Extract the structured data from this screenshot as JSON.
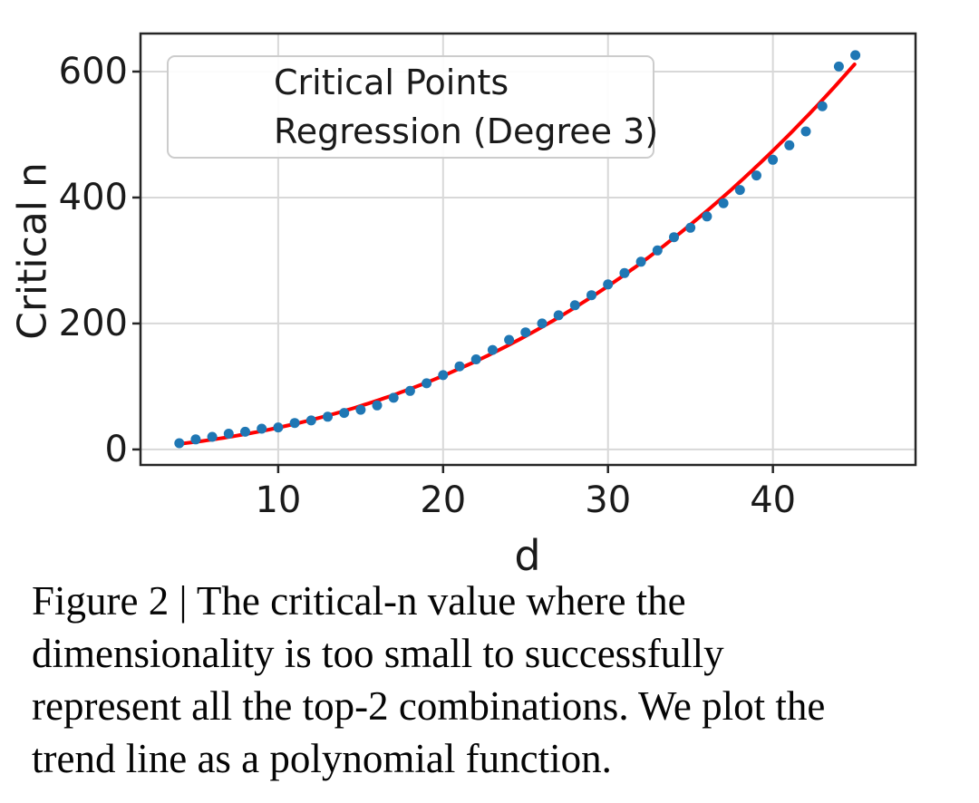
{
  "figure": {
    "caption_lines": [
      "Figure 2 | The critical-n value where the",
      "dimensionality is too small to successfully",
      "represent all the top-2 combinations. We plot the",
      "trend line as a polynomial function."
    ]
  },
  "chart_data": {
    "type": "scatter",
    "title": "",
    "xlabel": "d",
    "ylabel": "Critical n",
    "xlim": [
      1.65,
      48.65
    ],
    "ylim": [
      -24.6,
      660.4
    ],
    "xticks": [
      10,
      20,
      30,
      40
    ],
    "yticks": [
      0,
      200,
      400,
      600
    ],
    "grid": true,
    "legend_position": "upper left",
    "colors": {
      "points": "#1f77b4",
      "line": "#ff0000",
      "grid": "#d8d8d8",
      "spine": "#262626",
      "text": "#1a1a1a"
    },
    "series": [
      {
        "name": "Critical Points",
        "kind": "scatter",
        "color": "#1f77b4",
        "x": [
          4,
          5,
          6,
          7,
          8,
          9,
          10,
          11,
          12,
          13,
          14,
          15,
          16,
          17,
          18,
          19,
          20,
          21,
          22,
          23,
          24,
          25,
          26,
          27,
          28,
          29,
          30,
          31,
          32,
          33,
          34,
          35,
          36,
          37,
          38,
          39,
          40,
          41,
          42,
          43,
          44,
          45
        ],
        "y": [
          10,
          16,
          20,
          25,
          28,
          33,
          35,
          42,
          46,
          52,
          58,
          63,
          70,
          82,
          93,
          105,
          118,
          132,
          143,
          158,
          174,
          186,
          200,
          213,
          229,
          245,
          262,
          280,
          298,
          316,
          337,
          352,
          370,
          391,
          412,
          435,
          460,
          483,
          505,
          545,
          608,
          626
        ]
      },
      {
        "name": "Regression (Degree 3)",
        "kind": "line",
        "color": "#ff0000",
        "poly_coeffs": {
          "a3": 0.0021,
          "a2": 0.174,
          "a1": 1.5475,
          "a0": -0.35
        },
        "x_range": [
          3.95,
          45.05
        ]
      }
    ]
  }
}
